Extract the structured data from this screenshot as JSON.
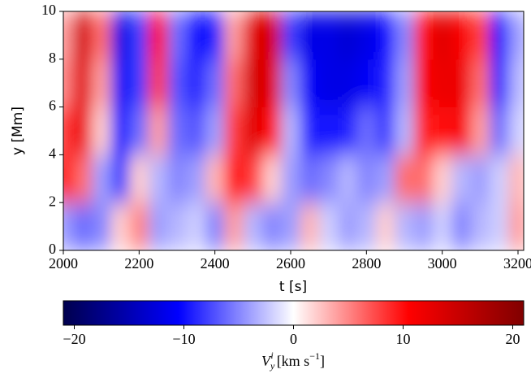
{
  "chart_data": {
    "type": "heatmap",
    "x_label": "t [s]",
    "y_label": "y [Mm]",
    "x": [
      2000,
      2050,
      2100,
      2150,
      2200,
      2250,
      2300,
      2350,
      2400,
      2450,
      2500,
      2550,
      2600,
      2650,
      2700,
      2750,
      2800,
      2850,
      2900,
      2950,
      3000,
      3050,
      3100,
      3150,
      3200
    ],
    "y": [
      1,
      3,
      5,
      7,
      9
    ],
    "z": [
      [
        -4,
        -6,
        -5,
        2,
        5,
        -4,
        -3,
        -2,
        -5,
        4,
        -3,
        -5,
        -4,
        3,
        -2,
        -4,
        -3,
        2,
        -3,
        -4,
        -2,
        -5,
        -3,
        -2,
        4
      ],
      [
        10,
        6,
        -4,
        -8,
        2,
        -3,
        -5,
        -4,
        3,
        10,
        8,
        2,
        -4,
        -6,
        -5,
        -3,
        -5,
        -4,
        6,
        6,
        2,
        -3,
        -4,
        -2,
        3
      ],
      [
        8,
        12,
        2,
        -10,
        -6,
        4,
        -6,
        -7,
        -4,
        8,
        13,
        10,
        -3,
        -9,
        -10,
        -9,
        -6,
        -8,
        -3,
        9,
        10,
        11,
        4,
        -6,
        -2
      ],
      [
        5,
        13,
        4,
        -11,
        -8,
        8,
        -7,
        -9,
        -6,
        6,
        14,
        13,
        -5,
        -11,
        -12,
        -12,
        -11,
        -9,
        -4,
        11,
        12,
        12,
        6,
        -9,
        -3
      ],
      [
        4,
        14,
        6,
        -12,
        -8,
        10,
        -6,
        -10,
        -9,
        4,
        13,
        14,
        -8,
        -12,
        -12,
        -13,
        -12,
        -10,
        -5,
        10,
        13,
        11,
        8,
        -10,
        -4
      ]
    ],
    "xlim": [
      2000,
      3215
    ],
    "ylim": [
      0,
      10
    ],
    "xticks": [
      2000,
      2200,
      2400,
      2600,
      2800,
      3000,
      3200
    ],
    "yticks": [
      0,
      2,
      4,
      6,
      8,
      10
    ],
    "colormap": "seismic",
    "clim": [
      -21,
      21
    ],
    "colorbar_ticks": [
      {
        "value": -20,
        "label": "−20"
      },
      {
        "value": -10,
        "label": "−10"
      },
      0,
      10,
      20
    ],
    "colorbar_label": {
      "symbol": "V",
      "sub": "y",
      "sup": "i",
      "unit": "[km s",
      "unit_sup": "−1",
      "unit_end": "]"
    }
  }
}
